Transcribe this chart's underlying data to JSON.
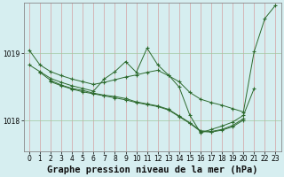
{
  "title": "Graphe pression niveau de la mer (hPa)",
  "bg_color": "#d6eef0",
  "line_color": "#2d6a2d",
  "grid_color_x": "#d4a0a0",
  "grid_color_y": "#a0c8a0",
  "ylim": [
    1017.55,
    1019.75
  ],
  "yticks": [
    1018.0,
    1019.0
  ],
  "xlim": [
    -0.5,
    23.5
  ],
  "xticks": [
    0,
    1,
    2,
    3,
    4,
    5,
    6,
    7,
    8,
    9,
    10,
    11,
    12,
    13,
    14,
    15,
    16,
    17,
    18,
    19,
    20,
    21,
    22,
    23
  ],
  "title_fontsize": 7.5,
  "tick_fontsize": 5.5,
  "marker": "+",
  "s1_x": [
    0,
    1,
    2,
    3,
    4,
    5,
    6,
    7,
    8,
    9,
    10,
    11,
    12,
    13,
    14,
    15,
    16,
    17,
    18,
    19,
    20,
    21,
    22,
    23
  ],
  "s1_y": [
    1019.05,
    1018.83,
    1018.73,
    1018.67,
    1018.62,
    1018.58,
    1018.54,
    1018.57,
    1018.61,
    1018.65,
    1018.68,
    1018.72,
    1018.75,
    1018.67,
    1018.58,
    1018.42,
    1018.32,
    1018.27,
    1018.23,
    1018.18,
    1018.13,
    1019.03,
    1019.52,
    1019.72
  ],
  "s2_x": [
    0,
    1,
    2,
    3,
    4,
    5,
    6,
    7,
    8,
    9,
    10,
    11,
    12,
    13,
    14,
    15,
    16,
    17,
    18,
    19,
    20,
    21
  ],
  "s2_y": [
    1018.83,
    1018.73,
    1018.63,
    1018.57,
    1018.52,
    1018.48,
    1018.44,
    1018.62,
    1018.73,
    1018.88,
    1018.72,
    1019.08,
    1018.83,
    1018.68,
    1018.5,
    1018.08,
    1017.82,
    1017.87,
    1017.92,
    1017.98,
    1018.08,
    1018.48
  ],
  "s3_x": [
    1,
    2,
    3,
    4,
    5,
    6,
    7,
    8,
    9,
    10,
    11,
    12,
    13,
    14,
    15,
    16,
    17,
    18,
    19,
    20
  ],
  "s3_y": [
    1018.72,
    1018.6,
    1018.53,
    1018.48,
    1018.45,
    1018.41,
    1018.38,
    1018.36,
    1018.33,
    1018.28,
    1018.25,
    1018.22,
    1018.17,
    1018.07,
    1017.97,
    1017.85,
    1017.84,
    1017.87,
    1017.93,
    1018.03
  ],
  "s4_x": [
    2,
    3,
    4,
    5,
    6,
    7,
    8,
    9,
    10,
    11,
    12,
    13,
    14,
    15,
    16,
    17,
    18,
    19,
    20
  ],
  "s4_y": [
    1018.58,
    1018.52,
    1018.47,
    1018.43,
    1018.4,
    1018.37,
    1018.34,
    1018.31,
    1018.27,
    1018.24,
    1018.21,
    1018.16,
    1018.06,
    1017.96,
    1017.84,
    1017.83,
    1017.86,
    1017.91,
    1018.01
  ]
}
